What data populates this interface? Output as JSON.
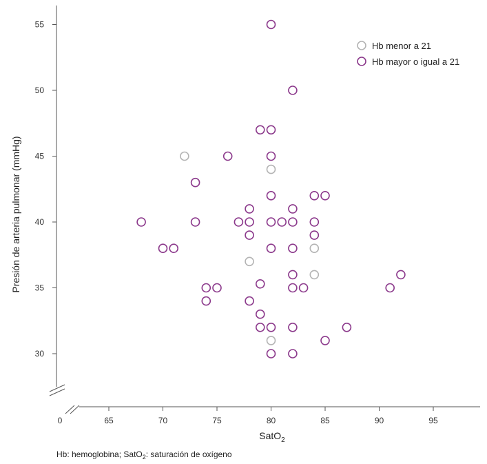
{
  "chart_data": {
    "type": "scatter",
    "title": "",
    "xlabel": "SatO",
    "xlabel_sub": "2",
    "ylabel": "Presión de arteria pulmonar (mmHg)",
    "x_ticks": [
      "0",
      "65",
      "70",
      "75",
      "80",
      "85",
      "90",
      "95"
    ],
    "y_ticks": [
      "30",
      "35",
      "40",
      "45",
      "50",
      "55"
    ],
    "xlim": [
      63,
      98
    ],
    "ylim": [
      26,
      56
    ],
    "axis_breaks": true,
    "grid": false,
    "legend_position": "top-right",
    "series": [
      {
        "name": "Hb menor a 21",
        "color": "#b4b4b4",
        "points": [
          [
            72,
            45
          ],
          [
            80,
            44
          ],
          [
            78,
            37
          ],
          [
            84,
            38
          ],
          [
            84,
            36
          ],
          [
            80,
            31
          ]
        ]
      },
      {
        "name": "Hb mayor o igual a 21",
        "color": "#8c3a8c",
        "points": [
          [
            80,
            55
          ],
          [
            82,
            50
          ],
          [
            79,
            47
          ],
          [
            80,
            47
          ],
          [
            76,
            45
          ],
          [
            80,
            45
          ],
          [
            73,
            43
          ],
          [
            80,
            42
          ],
          [
            84,
            42
          ],
          [
            85,
            42
          ],
          [
            78,
            41
          ],
          [
            82,
            41
          ],
          [
            68,
            40
          ],
          [
            73,
            40
          ],
          [
            77,
            40
          ],
          [
            78,
            40
          ],
          [
            80,
            40
          ],
          [
            81,
            40
          ],
          [
            82,
            40
          ],
          [
            84,
            40
          ],
          [
            78,
            39
          ],
          [
            84,
            39
          ],
          [
            70,
            38
          ],
          [
            71,
            38
          ],
          [
            80,
            38
          ],
          [
            82,
            38
          ],
          [
            82,
            36
          ],
          [
            92,
            36
          ],
          [
            74,
            35
          ],
          [
            75,
            35
          ],
          [
            79,
            35.3
          ],
          [
            82,
            35
          ],
          [
            83,
            35
          ],
          [
            91,
            35
          ],
          [
            74,
            34
          ],
          [
            78,
            34
          ],
          [
            79,
            33
          ],
          [
            79,
            32
          ],
          [
            80,
            32
          ],
          [
            82,
            32
          ],
          [
            87,
            32
          ],
          [
            85,
            31
          ],
          [
            80,
            30
          ],
          [
            82,
            30
          ]
        ]
      }
    ]
  },
  "footnote": {
    "part1": "Hb: hemoglobina; SatO",
    "sub": "2",
    "part2": ": saturación de oxígeno"
  }
}
